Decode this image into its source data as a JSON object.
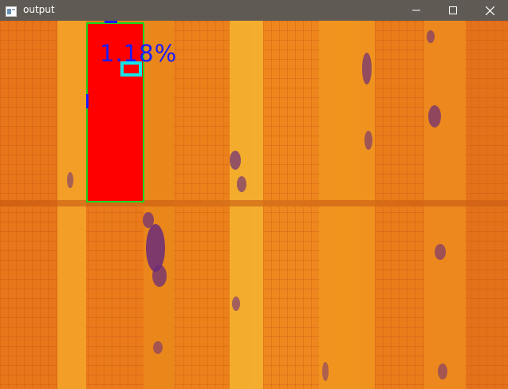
{
  "window": {
    "title": "output",
    "controls": {
      "minimize": "minimize",
      "maximize": "maximize",
      "close": "close"
    }
  },
  "detection": {
    "percentage_label": "1.18%",
    "hotspot_fill": "#ff0000",
    "panel_outline": "#16d81c",
    "cell_marker": "#12e6ea",
    "label_color": "#1c1cff"
  }
}
